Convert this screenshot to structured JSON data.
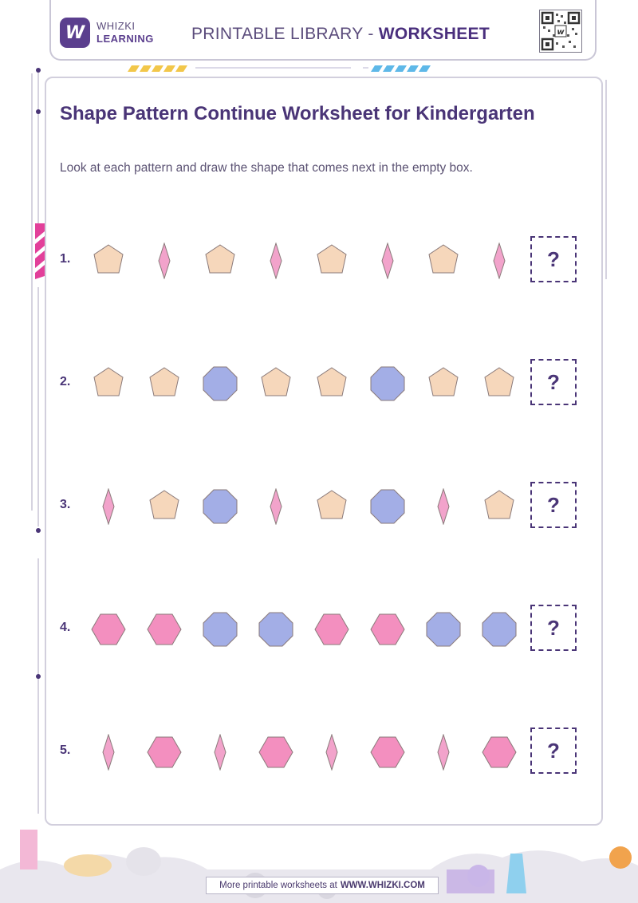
{
  "header": {
    "brand_top": "WHIZKI",
    "brand_bottom": "LEARNING",
    "title_prefix": "PRINTABLE LIBRARY - ",
    "title_strong": "WORKSHEET",
    "logo_letter": "W"
  },
  "worksheet": {
    "title": "Shape Pattern Continue Worksheet for Kindergarten",
    "instructions": "Look at each pattern and draw the shape that comes next in the empty box.",
    "answer_placeholder": "?",
    "rows": [
      {
        "number": "1.",
        "shapes": [
          "pentagon",
          "diamond",
          "pentagon",
          "diamond",
          "pentagon",
          "diamond",
          "pentagon",
          "diamond"
        ]
      },
      {
        "number": "2.",
        "shapes": [
          "pentagon",
          "pentagon",
          "octagon",
          "pentagon",
          "pentagon",
          "octagon",
          "pentagon",
          "pentagon"
        ]
      },
      {
        "number": "3.",
        "shapes": [
          "diamond",
          "pentagon",
          "octagon",
          "diamond",
          "pentagon",
          "octagon",
          "diamond",
          "pentagon"
        ]
      },
      {
        "number": "4.",
        "shapes": [
          "hexagon",
          "hexagon",
          "octagon",
          "octagon",
          "hexagon",
          "hexagon",
          "octagon",
          "octagon"
        ]
      },
      {
        "number": "5.",
        "shapes": [
          "diamond",
          "hexagon",
          "diamond",
          "hexagon",
          "diamond",
          "hexagon",
          "diamond",
          "hexagon"
        ]
      }
    ]
  },
  "colors": {
    "pentagon": "#f6d7bb",
    "diamond": "#f2a3cb",
    "octagon": "#a3aee6",
    "hexagon": "#f38fbf",
    "outline": "#8a7a7a",
    "accent": "#4a3577"
  },
  "footer": {
    "prefix": "More printable worksheets at",
    "link": "WWW.WHIZKI.COM"
  }
}
